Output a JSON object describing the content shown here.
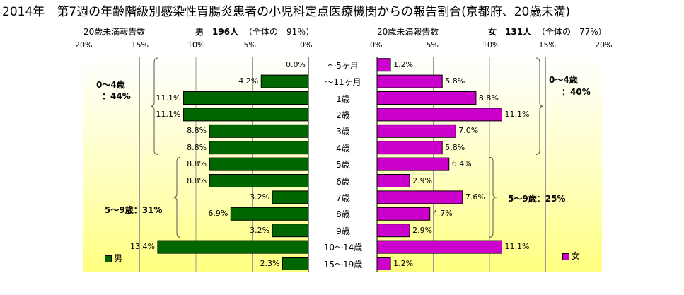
{
  "title": "2014年　第7週の年齢階級別感染性胃腸炎患者の小児科定点医療機関からの報告割合(京都府、20歳未満)",
  "colors": {
    "male": "#006600",
    "female": "#cc00cc",
    "bg_light": "#ffffee",
    "bg_yellow": "#ffffa0"
  },
  "male_panel": {
    "count_label": "20歳未満報告数",
    "sex": "男",
    "count": "196人",
    "share": "（全体の　91％）",
    "legend": "男",
    "group_labels": [
      "0～4歳",
      "：44%",
      "5～9歳：31%"
    ]
  },
  "female_panel": {
    "count_label": "20歳未満報告数",
    "sex": "女",
    "count": "131人",
    "share": "（全体の　77%）",
    "legend": "女",
    "group_labels": [
      "0～4歳",
      "：40%",
      "5～9歳：25%"
    ]
  },
  "chart_data": {
    "type": "bar",
    "categories": [
      "～5ヶ月",
      "～11ヶ月",
      "1歳",
      "2歳",
      "3歳",
      "4歳",
      "5歳",
      "6歳",
      "7歳",
      "8歳",
      "9歳",
      "10～14歳",
      "15～19歳"
    ],
    "series": [
      {
        "name": "男",
        "values": [
          0.0,
          4.2,
          11.1,
          11.1,
          8.8,
          8.8,
          8.8,
          8.8,
          3.2,
          6.9,
          3.2,
          13.4,
          2.3
        ]
      },
      {
        "name": "女",
        "values": [
          1.2,
          5.8,
          8.8,
          11.1,
          7.0,
          5.8,
          6.4,
          2.9,
          7.6,
          4.7,
          2.9,
          11.1,
          1.2
        ]
      }
    ],
    "male_ticks": [
      "20%",
      "15%",
      "10%",
      "5%",
      "0%"
    ],
    "female_ticks": [
      "0%",
      "5%",
      "10%",
      "15%",
      "20%"
    ],
    "xlim": [
      0,
      20
    ],
    "value_labels": {
      "male": [
        "0.0%",
        "4.2%",
        "11.1%",
        "11.1%",
        "8.8%",
        "8.8%",
        "8.8%",
        "8.8%",
        "3.2%",
        "6.9%",
        "3.2%",
        "13.4%",
        "2.3%"
      ],
      "female": [
        "1.2%",
        "5.8%",
        "8.8%",
        "11.1%",
        "7.0%",
        "5.8%",
        "6.4%",
        "2.9%",
        "7.6%",
        "4.7%",
        "2.9%",
        "11.1%",
        "1.2%"
      ]
    }
  }
}
